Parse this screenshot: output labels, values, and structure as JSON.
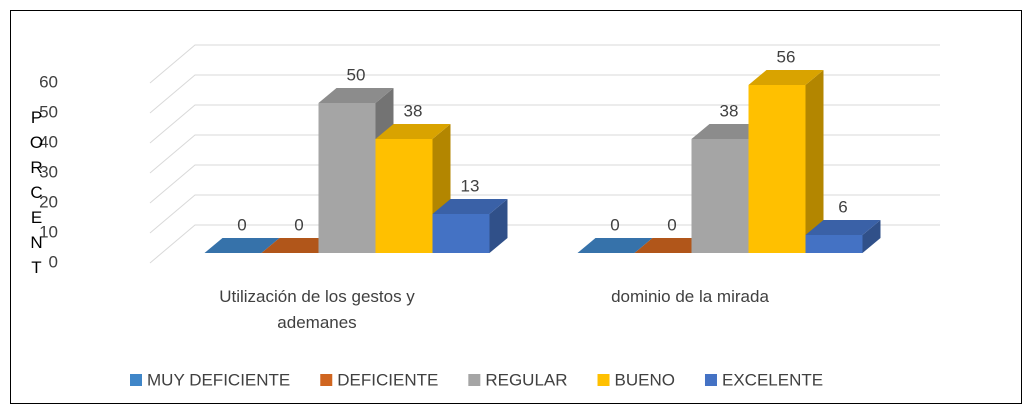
{
  "chart_data": {
    "type": "bar3d",
    "y_label": "PORCENT",
    "categories": [
      "Utilización de los gestos y ademanes",
      "dominio de la mirada"
    ],
    "series": [
      {
        "name": "MUY DEFICIENTE",
        "color": "#3f86c8",
        "values": [
          0,
          0
        ]
      },
      {
        "name": "DEFICIENTE",
        "color": "#d0651f",
        "values": [
          0,
          0
        ]
      },
      {
        "name": "REGULAR",
        "color": "#a5a5a5",
        "values": [
          50,
          38
        ]
      },
      {
        "name": "BUENO",
        "color": "#ffc000",
        "values": [
          38,
          56
        ]
      },
      {
        "name": "EXCELENTE",
        "color": "#4472c4",
        "values": [
          13,
          6
        ]
      }
    ],
    "ylim": [
      0,
      60
    ],
    "yticks": [
      0,
      10,
      20,
      30,
      40,
      50,
      60
    ],
    "grid": true,
    "legend": "bottom"
  }
}
